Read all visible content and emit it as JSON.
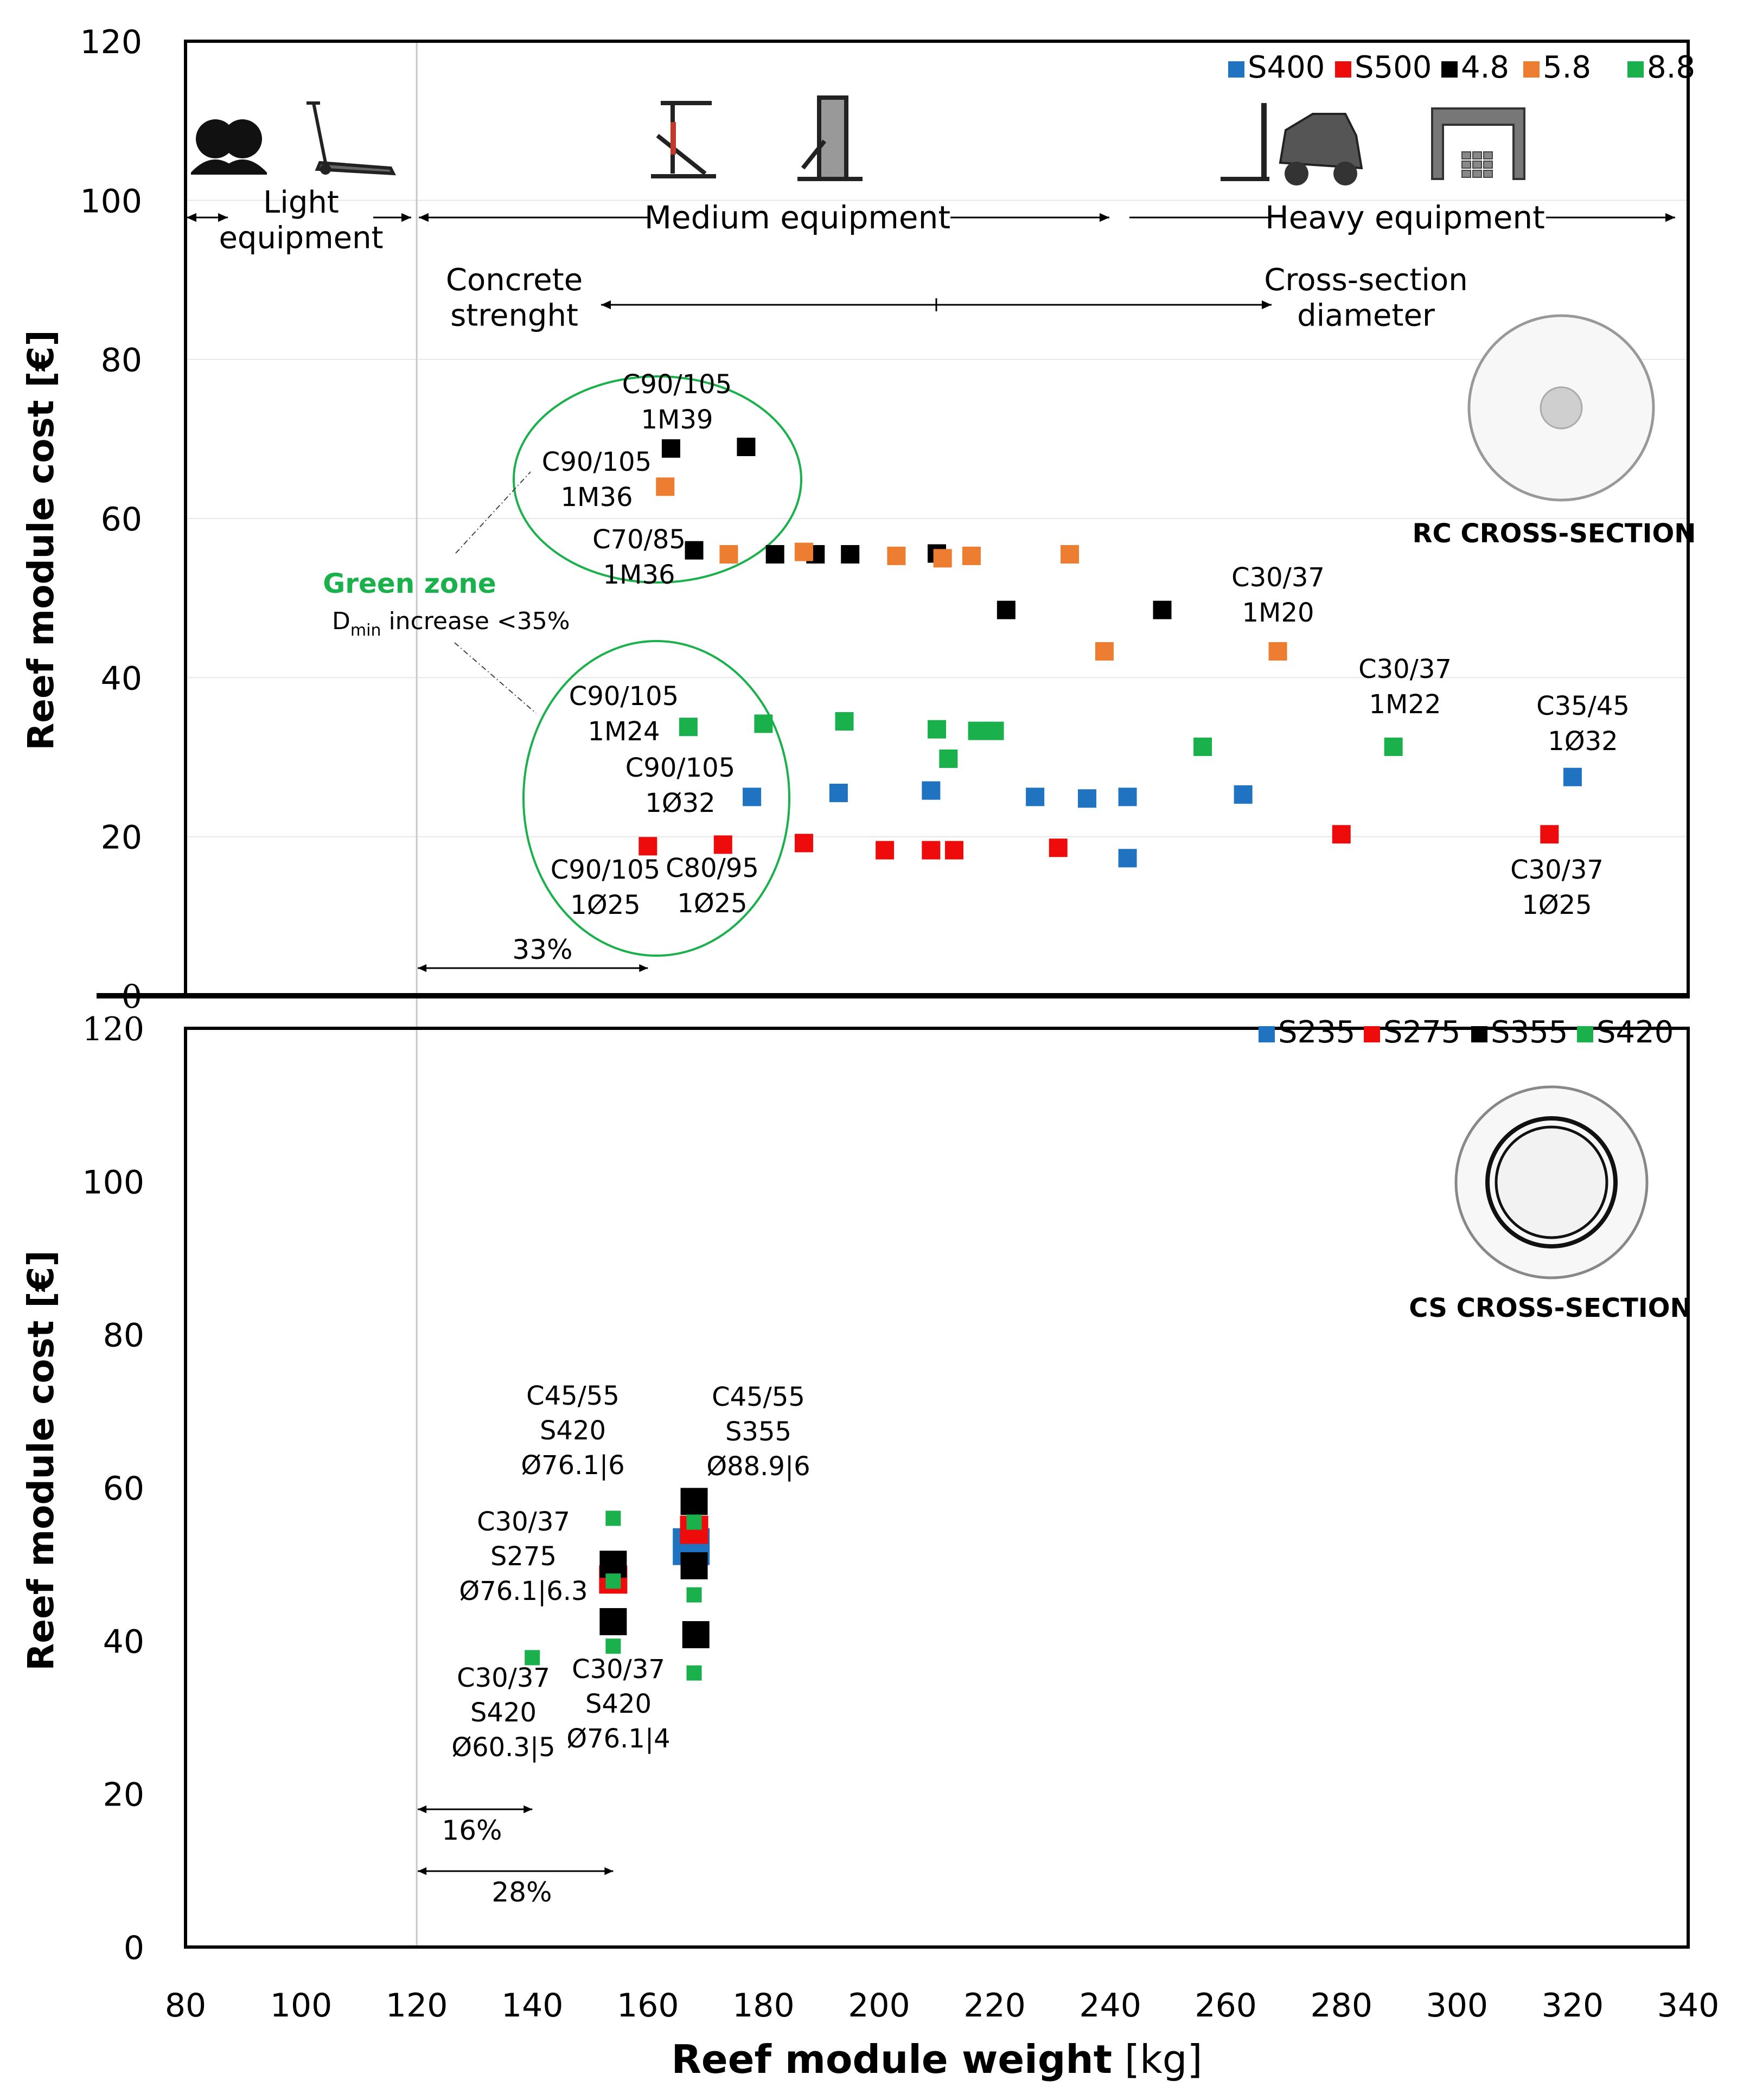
{
  "chart_data": [
    {
      "type": "scatter",
      "panel": "top",
      "ylabel": "Reef module cost [€]",
      "xlim": [
        80,
        340
      ],
      "ylim": [
        0,
        120
      ],
      "yticks": [
        0,
        20,
        40,
        60,
        80,
        100,
        120
      ],
      "grid": true,
      "legend_position": "top-right",
      "series": [
        {
          "name": "S400",
          "color": "#1f73c0",
          "points": [
            [
              178,
              25
            ],
            [
              193,
              25.5
            ],
            [
              209,
              25.8
            ],
            [
              227,
              25
            ],
            [
              236,
              24.8
            ],
            [
              243,
              25
            ],
            [
              243,
              17.3
            ],
            [
              263,
              25.3
            ],
            [
              320,
              27.5
            ]
          ]
        },
        {
          "name": "S500",
          "color": "#ee0b0b",
          "points": [
            [
              160,
              18.8
            ],
            [
              173,
              19
            ],
            [
              187,
              19.2
            ],
            [
              201,
              18.3
            ],
            [
              209,
              18.3
            ],
            [
              213,
              18.3
            ],
            [
              231,
              18.6
            ],
            [
              280,
              20.3
            ],
            [
              316,
              20.3
            ]
          ]
        },
        {
          "name": "4.8",
          "color": "#000000",
          "points": [
            [
              164,
              68.8
            ],
            [
              177,
              69
            ],
            [
              168,
              56
            ],
            [
              182,
              55.5
            ],
            [
              189,
              55.5
            ],
            [
              195,
              55.5
            ],
            [
              210,
              55.6
            ],
            [
              222,
              48.5
            ],
            [
              249,
              48.5
            ]
          ]
        },
        {
          "name": "5.8",
          "color": "#ed7d31",
          "points": [
            [
              163,
              64
            ],
            [
              174,
              55.5
            ],
            [
              187,
              55.8
            ],
            [
              203,
              55.3
            ],
            [
              211,
              55
            ],
            [
              216,
              55.3
            ],
            [
              233,
              55.5
            ],
            [
              239,
              43.3
            ],
            [
              269,
              43.3
            ]
          ]
        },
        {
          "name": "8.8",
          "color": "#1ab04b",
          "points": [
            [
              167,
              33.8
            ],
            [
              180,
              34.2
            ],
            [
              194,
              34.5
            ],
            [
              210,
              33.5
            ],
            [
              212,
              29.8
            ],
            [
              217,
              33.3
            ],
            [
              220,
              33.3
            ],
            [
              256,
              31.3
            ],
            [
              289,
              31.3
            ]
          ]
        }
      ],
      "equipment": {
        "light": "Light\nequipment",
        "medium": "Medium equipment",
        "heavy": "Heavy equipment"
      },
      "range_labels": {
        "left": "Concrete\nstrenght",
        "right": "Cross-section\ndiameter"
      },
      "green_zone": {
        "title": "Green zone",
        "dmin": "D",
        "dmin_sub": "min",
        "increase": " increase <35%"
      },
      "cross_section_label": "RC CROSS-SECTION",
      "span_label": "33%",
      "annotations": [
        "C90/105\n1M39",
        "C90/105\n1M36",
        "C70/85\n1M36",
        "C30/37\n1M20",
        "C30/37\n1M22",
        "C90/105\n1M24",
        "C90/105\n1Ø32",
        "C35/45\n1Ø32",
        "C90/105\n1Ø25",
        "C80/95\n1Ø25",
        "C30/37\n1Ø25"
      ]
    },
    {
      "type": "scatter",
      "panel": "bottom",
      "ylabel": "Reef module cost [€]",
      "xlabel": "Reef module weight [kg]",
      "xlabel_main": "Reef module weight",
      "xlabel_unit": " [kg]",
      "xlim": [
        80,
        340
      ],
      "ylim": [
        0,
        120
      ],
      "xticks": [
        80,
        100,
        120,
        140,
        160,
        180,
        200,
        220,
        240,
        260,
        280,
        300,
        320,
        340
      ],
      "yticks": [
        0,
        20,
        40,
        60,
        80,
        100,
        120
      ],
      "legend_position": "top-right",
      "series": [
        {
          "name": "S235",
          "color": "#1f73c0",
          "points": [
            [
              167.5,
              52.3
            ]
          ]
        },
        {
          "name": "S275",
          "color": "#ee0b0b",
          "points": [
            [
              154,
              48
            ],
            [
              168,
              54.5
            ]
          ]
        },
        {
          "name": "S355",
          "color": "#000000",
          "points": [
            [
              154,
              50
            ],
            [
              154,
              42.5
            ],
            [
              168,
              58.2
            ],
            [
              168,
              49.8
            ],
            [
              168.3,
              40.8
            ]
          ]
        },
        {
          "name": "S420",
          "color": "#1ab04b",
          "points": [
            [
              140,
              37.8
            ],
            [
              154,
              56
            ],
            [
              154,
              47.8
            ],
            [
              154,
              39.3
            ],
            [
              168,
              55.5
            ],
            [
              168,
              46
            ],
            [
              168,
              35.8
            ]
          ]
        }
      ],
      "cross_section_label": "CS CROSS-SECTION",
      "span_labels": [
        "16%",
        "28%"
      ],
      "annotations": [
        "C45/55\nS420\nØ76.1|6",
        "C45/55\nS355\nØ88.9|6",
        "C30/37\nS275\nØ76.1|6.3",
        "C30/37\nS420\nØ60.3|5",
        "C30/37\nS420\nØ76.1|4"
      ]
    }
  ]
}
